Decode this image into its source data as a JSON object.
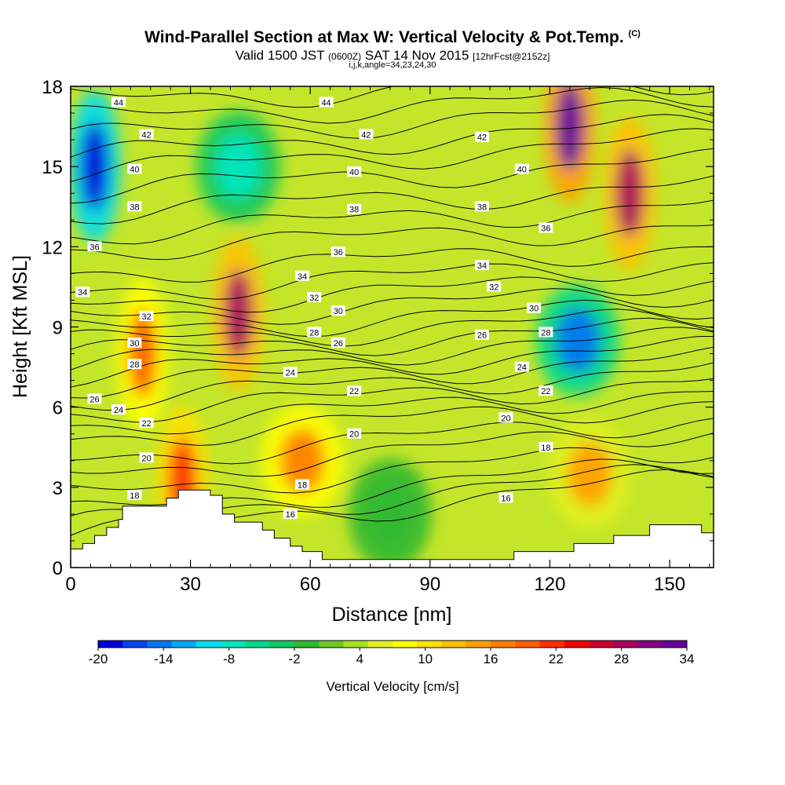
{
  "header": {
    "title": "Wind-Parallel Section at Max W: Vertical Velocity & Pot.Temp.",
    "title_tag": "(C)",
    "subtitle_main": "Valid 1500 JST",
    "subtitle_zulu": "(0600Z)",
    "subtitle_date": "SAT 14 Nov 2015",
    "subtitle_fcst": "[12hrFcst@2152z]",
    "subtitle2": "i,j,k,angle=34,23,24,30"
  },
  "chart_data": {
    "type": "heatmap",
    "title": "Wind-Parallel Section at Max W: Vertical Velocity & Pot.Temp.",
    "xlabel": "Distance [nm]",
    "ylabel": "Height [Kft MSL]",
    "xlim": [
      0,
      161
    ],
    "ylim": [
      0,
      18
    ],
    "x_ticks": [
      0,
      30,
      60,
      90,
      120,
      150
    ],
    "y_ticks": [
      0,
      3,
      6,
      9,
      12,
      15,
      18
    ],
    "colorbar": {
      "title": "Vertical Velocity [cm/s]",
      "range": [
        -20,
        34
      ],
      "labels": [
        -20,
        -14,
        -8,
        -2,
        4,
        10,
        16,
        22,
        28,
        34
      ],
      "colors": [
        "#0000dd",
        "#0044ee",
        "#0077f0",
        "#00aaf5",
        "#00ddee",
        "#00e6c0",
        "#00d890",
        "#10c860",
        "#30b830",
        "#6cc828",
        "#a8e020",
        "#e0f020",
        "#ffff00",
        "#ffe000",
        "#ffc000",
        "#ffa000",
        "#ff8000",
        "#ff6000",
        "#ff3000",
        "#ee0000",
        "#cc0030",
        "#aa0060",
        "#880080",
        "#6600a0"
      ]
    },
    "vertical_velocity_features": [
      {
        "x": 6,
        "y": 15,
        "w": -20
      },
      {
        "x": 42,
        "y": 9.5,
        "w": 28
      },
      {
        "x": 28,
        "y": 3.2,
        "w": 22
      },
      {
        "x": 18,
        "y": 8,
        "w": 20
      },
      {
        "x": 58,
        "y": 4,
        "w": 16
      },
      {
        "x": 125,
        "y": 16.5,
        "w": 34
      },
      {
        "x": 140,
        "y": 14,
        "w": 28
      },
      {
        "x": 127,
        "y": 8.5,
        "w": -14
      },
      {
        "x": 130,
        "y": 3.5,
        "w": 14
      },
      {
        "x": 42,
        "y": 15,
        "w": -8
      },
      {
        "x": 80,
        "y": 2,
        "w": -2
      }
    ],
    "terrain_height": [
      {
        "x": 0,
        "y": 0.7
      },
      {
        "x": 3,
        "y": 0.9
      },
      {
        "x": 6,
        "y": 1.2
      },
      {
        "x": 9,
        "y": 1.5
      },
      {
        "x": 12,
        "y": 1.8
      },
      {
        "x": 13,
        "y": 2.3
      },
      {
        "x": 24,
        "y": 2.6
      },
      {
        "x": 27,
        "y": 2.9
      },
      {
        "x": 35,
        "y": 2.7
      },
      {
        "x": 38,
        "y": 2.0
      },
      {
        "x": 41,
        "y": 1.7
      },
      {
        "x": 48,
        "y": 1.4
      },
      {
        "x": 51,
        "y": 1.1
      },
      {
        "x": 55,
        "y": 0.8
      },
      {
        "x": 58,
        "y": 0.6
      },
      {
        "x": 63,
        "y": 0.3
      },
      {
        "x": 93,
        "y": 0.3
      },
      {
        "x": 98,
        "y": 0.3
      },
      {
        "x": 111,
        "y": 0.6
      },
      {
        "x": 126,
        "y": 0.9
      },
      {
        "x": 136,
        "y": 1.2
      },
      {
        "x": 145,
        "y": 1.6
      },
      {
        "x": 155,
        "y": 1.6
      },
      {
        "x": 158,
        "y": 1.3
      },
      {
        "x": 161,
        "y": 1.3
      }
    ],
    "isentropes": [
      {
        "theta": 16,
        "y_left": 1.2,
        "y_right": 3.4
      },
      {
        "theta": 17,
        "y_left": 1.6,
        "y_right": 3.7
      },
      {
        "theta": 18,
        "y_left": 2.0,
        "y_right": 4.0
      },
      {
        "theta": 19,
        "y_left": 2.7,
        "y_right": 4.5
      },
      {
        "theta": 20,
        "y_left": 3.4,
        "y_right": 5.2
      },
      {
        "theta": 21,
        "y_left": 4.0,
        "y_right": 5.6
      },
      {
        "theta": 22,
        "y_left": 4.8,
        "y_right": 6.2
      },
      {
        "theta": 23,
        "y_left": 5.3,
        "y_right": 6.6
      },
      {
        "theta": 24,
        "y_left": 5.8,
        "y_right": 7.0
      },
      {
        "theta": 25,
        "y_left": 6.3,
        "y_right": 7.4
      },
      {
        "theta": 26,
        "y_left": 6.8,
        "y_right": 7.8
      },
      {
        "theta": 27,
        "y_left": 7.2,
        "y_right": 8.2
      },
      {
        "theta": 28,
        "y_left": 7.6,
        "y_right": 8.6
      },
      {
        "theta": 29,
        "y_left": 8.0,
        "y_right": 9.0
      },
      {
        "theta": 30,
        "y_left": 8.4,
        "y_right": 9.4
      },
      {
        "theta": 31,
        "y_left": 8.8,
        "y_right": 9.8
      },
      {
        "theta": 32,
        "y_left": 9.3,
        "y_right": 10.3
      },
      {
        "theta": 33,
        "y_left": 9.8,
        "y_right": 10.8
      },
      {
        "theta": 34,
        "y_left": 10.3,
        "y_right": 11.4
      },
      {
        "theta": 35,
        "y_left": 11.0,
        "y_right": 12.0
      },
      {
        "theta": 36,
        "y_left": 11.9,
        "y_right": 12.8
      },
      {
        "theta": 37,
        "y_left": 12.5,
        "y_right": 13.6
      },
      {
        "theta": 38,
        "y_left": 13.3,
        "y_right": 14.3
      },
      {
        "theta": 39,
        "y_left": 14.1,
        "y_right": 15.2
      },
      {
        "theta": 40,
        "y_left": 14.8,
        "y_right": 16.0
      },
      {
        "theta": 41,
        "y_left": 15.4,
        "y_right": 16.6
      },
      {
        "theta": 42,
        "y_left": 16.1,
        "y_right": 17.2
      },
      {
        "theta": 43,
        "y_left": 16.8,
        "y_right": 17.7
      },
      {
        "theta": 44,
        "y_left": 17.5,
        "y_right": 18.2
      }
    ],
    "contour_labels": [
      {
        "text": "44",
        "x": 12,
        "y": 17.4
      },
      {
        "text": "44",
        "x": 64,
        "y": 17.4
      },
      {
        "text": "42",
        "x": 19,
        "y": 16.2
      },
      {
        "text": "42",
        "x": 74,
        "y": 16.2
      },
      {
        "text": "42",
        "x": 103,
        "y": 16.1
      },
      {
        "text": "40",
        "x": 16,
        "y": 14.9
      },
      {
        "text": "40",
        "x": 71,
        "y": 14.8
      },
      {
        "text": "40",
        "x": 113,
        "y": 14.9
      },
      {
        "text": "38",
        "x": 16,
        "y": 13.5
      },
      {
        "text": "38",
        "x": 71,
        "y": 13.4
      },
      {
        "text": "38",
        "x": 103,
        "y": 13.5
      },
      {
        "text": "36",
        "x": 6,
        "y": 12.0
      },
      {
        "text": "36",
        "x": 67,
        "y": 11.8
      },
      {
        "text": "36",
        "x": 119,
        "y": 12.7
      },
      {
        "text": "34",
        "x": 3,
        "y": 10.3
      },
      {
        "text": "34",
        "x": 58,
        "y": 10.9
      },
      {
        "text": "34",
        "x": 103,
        "y": 11.3
      },
      {
        "text": "32",
        "x": 19,
        "y": 9.4
      },
      {
        "text": "32",
        "x": 61,
        "y": 10.1
      },
      {
        "text": "32",
        "x": 106,
        "y": 10.5
      },
      {
        "text": "30",
        "x": 16,
        "y": 8.4
      },
      {
        "text": "30",
        "x": 67,
        "y": 9.6
      },
      {
        "text": "30",
        "x": 116,
        "y": 9.7
      },
      {
        "text": "28",
        "x": 16,
        "y": 7.6
      },
      {
        "text": "28",
        "x": 61,
        "y": 8.8
      },
      {
        "text": "28",
        "x": 119,
        "y": 8.8
      },
      {
        "text": "26",
        "x": 6,
        "y": 6.3
      },
      {
        "text": "26",
        "x": 67,
        "y": 8.4
      },
      {
        "text": "26",
        "x": 103,
        "y": 8.7
      },
      {
        "text": "24",
        "x": 12,
        "y": 5.9
      },
      {
        "text": "24",
        "x": 55,
        "y": 7.3
      },
      {
        "text": "24",
        "x": 113,
        "y": 7.5
      },
      {
        "text": "22",
        "x": 19,
        "y": 5.4
      },
      {
        "text": "22",
        "x": 71,
        "y": 6.6
      },
      {
        "text": "22",
        "x": 119,
        "y": 6.6
      },
      {
        "text": "20",
        "x": 19,
        "y": 4.1
      },
      {
        "text": "20",
        "x": 71,
        "y": 5.0
      },
      {
        "text": "20",
        "x": 109,
        "y": 5.6
      },
      {
        "text": "18",
        "x": 16,
        "y": 2.7
      },
      {
        "text": "18",
        "x": 58,
        "y": 3.1
      },
      {
        "text": "18",
        "x": 119,
        "y": 4.5
      },
      {
        "text": "16",
        "x": 55,
        "y": 2.0
      },
      {
        "text": "16",
        "x": 109,
        "y": 2.6
      }
    ]
  }
}
